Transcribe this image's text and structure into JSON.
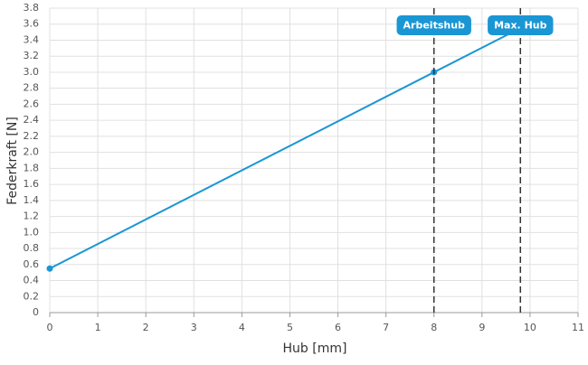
{
  "chart_data": {
    "type": "line",
    "x_label": "Hub [mm]",
    "y_label": "Federkraft [N]",
    "x": [
      0,
      8,
      9.8
    ],
    "series": [
      {
        "name": "Federkraft",
        "color": "#1a96d4",
        "values": [
          0.55,
          3.0,
          3.55
        ]
      }
    ],
    "xlim": [
      0,
      11
    ],
    "xticks": [
      0,
      1,
      2,
      3,
      4,
      5,
      6,
      7,
      8,
      9,
      10,
      11
    ],
    "ylim": [
      0,
      3.8
    ],
    "yticks": [
      0,
      0.2,
      0.4,
      0.6,
      0.8,
      {
        "value": 1,
        "label": "1.0"
      },
      1.2,
      1.4,
      1.6,
      1.8,
      {
        "value": 2,
        "label": "2.0"
      },
      2.2,
      2.4,
      2.6,
      2.8,
      {
        "value": 3,
        "label": "3.0"
      },
      3.2,
      3.4,
      3.6,
      3.8
    ],
    "grid": true,
    "annotations": [
      {
        "x": 8,
        "label": "Arbeitshub"
      },
      {
        "x": 9.8,
        "label": "Max. Hub"
      }
    ]
  }
}
